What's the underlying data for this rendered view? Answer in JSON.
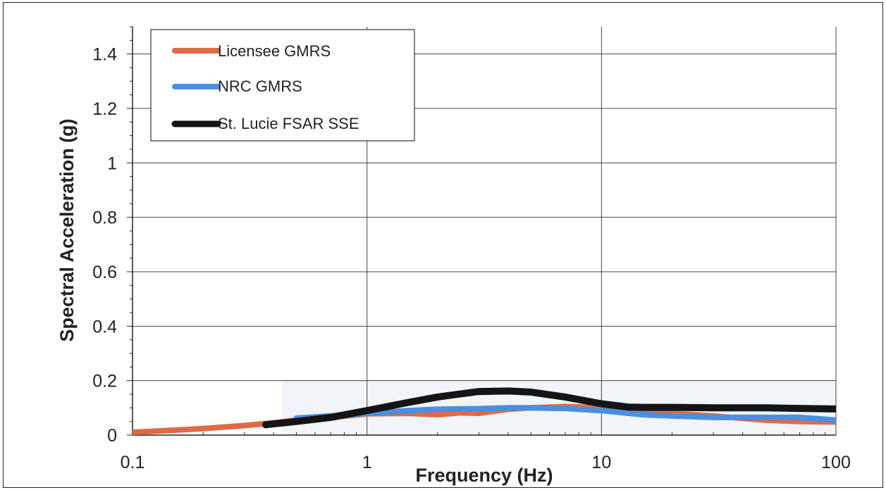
{
  "chart_data": {
    "type": "line",
    "xscale": "log",
    "xlabel": "Frequency (Hz)",
    "ylabel": "Spectral Acceleration (g)",
    "xlim": [
      0.1,
      100
    ],
    "ylim": [
      0,
      1.5
    ],
    "xticks": [
      0.1,
      1,
      10,
      100
    ],
    "xtick_labels": [
      "0.1",
      "1",
      "10",
      "100"
    ],
    "yticks": [
      0,
      0.2,
      0.4,
      0.6,
      0.8,
      1,
      1.2,
      1.4
    ],
    "ytick_labels": [
      "0",
      "0.2",
      "0.4",
      "0.6",
      "0.8",
      "1",
      "1.2",
      "1.4"
    ],
    "grid": true,
    "legend_position": "top-left",
    "series": [
      {
        "name": "Licensee GMRS",
        "color": "#e06a45",
        "x": [
          0.1,
          0.15,
          0.2,
          0.3,
          0.4,
          0.5,
          0.7,
          1,
          1.5,
          2,
          2.5,
          3,
          4,
          5,
          7,
          10,
          15,
          20,
          30,
          50,
          70,
          100
        ],
        "y": [
          0.01,
          0.018,
          0.024,
          0.035,
          0.045,
          0.055,
          0.065,
          0.078,
          0.08,
          0.075,
          0.082,
          0.08,
          0.095,
          0.1,
          0.105,
          0.1,
          0.09,
          0.08,
          0.07,
          0.055,
          0.05,
          0.048
        ]
      },
      {
        "name": "NRC GMRS",
        "color": "#4a8fe0",
        "x": [
          0.5,
          0.7,
          1,
          1.5,
          2,
          3,
          4,
          5,
          7,
          10,
          15,
          20,
          30,
          50,
          70,
          100
        ],
        "y": [
          0.062,
          0.07,
          0.08,
          0.09,
          0.095,
          0.097,
          0.1,
          0.1,
          0.098,
          0.09,
          0.075,
          0.07,
          0.065,
          0.065,
          0.065,
          0.055
        ]
      },
      {
        "name": "St. Lucie FSAR SSE",
        "color": "#151515",
        "x": [
          0.37,
          0.5,
          0.7,
          1,
          1.5,
          2,
          3,
          4,
          5,
          7,
          10,
          13,
          15,
          20,
          30,
          50,
          70,
          100
        ],
        "y": [
          0.038,
          0.05,
          0.065,
          0.09,
          0.12,
          0.14,
          0.16,
          0.162,
          0.158,
          0.14,
          0.115,
          0.103,
          0.102,
          0.102,
          0.1,
          0.1,
          0.098,
          0.096
        ]
      }
    ]
  }
}
